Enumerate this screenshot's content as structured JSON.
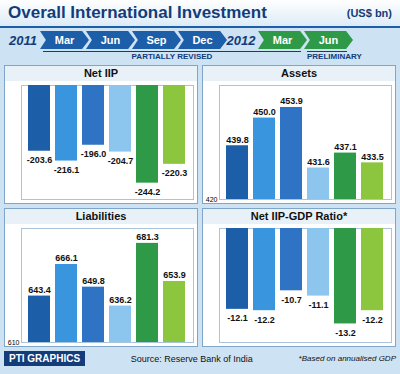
{
  "title": "Overall International Investment",
  "unit": "(US$ bn)",
  "timeline": [
    {
      "year": "2011",
      "months": [
        "Mar",
        "Jun",
        "Sep",
        "Dec"
      ]
    },
    {
      "year": "2012",
      "months": [
        "Mar",
        "Jun"
      ]
    }
  ],
  "status": [
    "PARTIALLY REVISED",
    "PARTIALLY REVISED",
    "PARTIALLY REVISED",
    "PARTIALLY REVISED",
    "PARTIALLY REVISED",
    "PRELIMINARY"
  ],
  "credit": "PTI GRAPHICS",
  "source": "Source: Reserve Bank of India",
  "footnote": "*Based on annualised GDP",
  "chart_data": [
    {
      "type": "bar",
      "title": "Net IIP",
      "categories": [
        "Mar",
        "Jun",
        "Sep",
        "Dec",
        "Mar",
        "Jun"
      ],
      "values": [
        -203.6,
        -216.1,
        -196.0,
        -204.7,
        -244.2,
        -220.3
      ],
      "value_labels": [
        "-203.6",
        "-216.1",
        "-196.0",
        "-204.7",
        "-244.2",
        "-220.3"
      ],
      "colors": [
        "#1d5ea8",
        "#3a95df",
        "#2f74c4",
        "#8cc5ee",
        "#2e9a48",
        "#8cc63f"
      ],
      "ylim": [
        -265,
        -120
      ],
      "data_labels": true,
      "tick_labels": false
    },
    {
      "type": "bar",
      "title": "Assets",
      "categories": [
        "Mar",
        "Jun",
        "Sep",
        "Dec",
        "Mar",
        "Jun"
      ],
      "values": [
        439.8,
        450.0,
        453.9,
        431.6,
        437.1,
        433.5
      ],
      "value_labels": [
        "439.8",
        "450.0",
        "453.9",
        "431.6",
        "437.1",
        "433.5"
      ],
      "colors": [
        "#1d5ea8",
        "#3a95df",
        "#2f74c4",
        "#8cc5ee",
        "#2e9a48",
        "#8cc63f"
      ],
      "ylim": [
        420,
        462
      ],
      "yticks": [
        420
      ],
      "data_labels": true,
      "tick_labels": "y"
    },
    {
      "type": "bar",
      "title": "Liabilities",
      "categories": [
        "Mar",
        "Jun",
        "Sep",
        "Dec",
        "Mar",
        "Jun"
      ],
      "values": [
        643.4,
        666.1,
        649.8,
        636.2,
        681.3,
        653.9
      ],
      "value_labels": [
        "643.4",
        "666.1",
        "649.8",
        "636.2",
        "681.3",
        "653.9"
      ],
      "colors": [
        "#1d5ea8",
        "#3a95df",
        "#2f74c4",
        "#8cc5ee",
        "#2e9a48",
        "#8cc63f"
      ],
      "ylim": [
        610,
        692
      ],
      "yticks": [
        610
      ],
      "data_labels": true,
      "tick_labels": "y"
    },
    {
      "type": "bar",
      "title": "Net IIP-GDP Ratio*",
      "categories": [
        "Mar",
        "Jun",
        "Sep",
        "Dec",
        "Mar",
        "Jun"
      ],
      "values": [
        -12.1,
        -12.2,
        -10.7,
        -11.1,
        -13.2,
        -12.2
      ],
      "value_labels": [
        "-12.1",
        "-12.2",
        "-10.7",
        "-11.1",
        "-13.2",
        "-12.2"
      ],
      "colors": [
        "#1d5ea8",
        "#3a95df",
        "#2f74c4",
        "#8cc5ee",
        "#2e9a48",
        "#8cc63f"
      ],
      "ylim": [
        -14.6,
        -6
      ],
      "data_labels": true,
      "tick_labels": false
    }
  ]
}
